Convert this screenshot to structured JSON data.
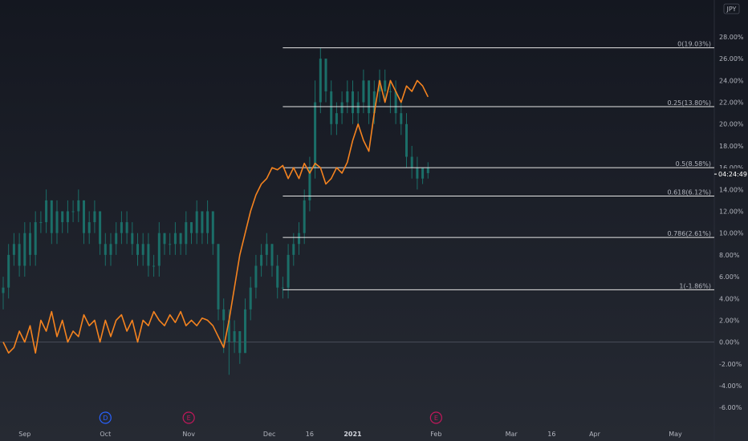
{
  "currency_badge": "JPY",
  "current_time": "04:24:49",
  "colors": {
    "candle": "#1b6e68",
    "line": "#f5831f",
    "fib": "#e6e6e6",
    "zero_line": "#4a4e5a",
    "badge_dividend": "#2962ff",
    "badge_earnings": "#c2185b"
  },
  "event_badges": [
    {
      "label": "D",
      "kind": "dividend",
      "date": "Oct"
    },
    {
      "label": "E",
      "kind": "earnings",
      "date": "Nov"
    },
    {
      "label": "E",
      "kind": "earnings",
      "date": "Feb"
    }
  ],
  "chart_data": {
    "type": "line",
    "y_unit": "%",
    "ylim": [
      -6.5,
      30.5
    ],
    "y_ticks": [
      "28.00%",
      "26.00%",
      "24.00%",
      "22.00%",
      "20.00%",
      "18.00%",
      "16.00%",
      "14.00%",
      "12.00%",
      "10.00%",
      "8.00%",
      "6.00%",
      "4.00%",
      "2.00%",
      "0.00%",
      "-2.00%",
      "-4.00%",
      "-6.00%"
    ],
    "x_ticks": [
      {
        "label": "Sep",
        "bold": false,
        "day": 8
      },
      {
        "label": "Oct",
        "bold": false,
        "day": 38
      },
      {
        "label": "Nov",
        "bold": false,
        "day": 69
      },
      {
        "label": "Dec",
        "bold": false,
        "day": 99
      },
      {
        "label": "16",
        "bold": false,
        "day": 114
      },
      {
        "label": "2021",
        "bold": true,
        "day": 130
      },
      {
        "label": "Feb",
        "bold": false,
        "day": 161
      },
      {
        "label": "Mar",
        "bold": false,
        "day": 189
      },
      {
        "label": "16",
        "bold": false,
        "day": 204
      },
      {
        "label": "Apr",
        "bold": false,
        "day": 220
      },
      {
        "label": "May",
        "bold": false,
        "day": 250
      }
    ],
    "fib_levels": [
      {
        "label": "0(19.03%)",
        "value": 27.0
      },
      {
        "label": "0.25(13.80%)",
        "value": 21.6
      },
      {
        "label": "0.5(8.58%)",
        "value": 16.0
      },
      {
        "label": "0.618(6.12%)",
        "value": 13.4
      },
      {
        "label": "0.786(2.61%)",
        "value": 9.6
      },
      {
        "label": "1(-1.86%)",
        "value": 4.8
      }
    ],
    "fib_start_day": 104,
    "current_value": 16.0,
    "orange_series": {
      "x": [
        0,
        2,
        4,
        6,
        8,
        10,
        12,
        14,
        16,
        18,
        20,
        22,
        24,
        26,
        28,
        30,
        32,
        34,
        36,
        38,
        40,
        42,
        44,
        46,
        48,
        50,
        52,
        54,
        56,
        58,
        60,
        62,
        64,
        66,
        68,
        70,
        72,
        74,
        76,
        78,
        80,
        82,
        84,
        86,
        88,
        90,
        92,
        94,
        96,
        98,
        100,
        102,
        104,
        106,
        108,
        110,
        112,
        114,
        116,
        118,
        120,
        122,
        124,
        126,
        128,
        130,
        132,
        134,
        136,
        138,
        140,
        142,
        144,
        146,
        148,
        150,
        152,
        154,
        156,
        158
      ],
      "y": [
        0,
        -1,
        -0.5,
        1,
        0,
        1.5,
        -1,
        2,
        1,
        2.8,
        0.5,
        2,
        0,
        1,
        0.5,
        2.5,
        1.5,
        2,
        0,
        2,
        0.5,
        2,
        2.5,
        1,
        2,
        0,
        2,
        1.5,
        2.8,
        2,
        1.5,
        2.5,
        1.8,
        2.8,
        1.5,
        2,
        1.5,
        2.2,
        2,
        1.5,
        0.5,
        -0.5,
        2,
        5,
        8,
        10,
        12,
        13.5,
        14.5,
        15,
        16,
        15.8,
        16.2,
        15,
        16,
        15,
        16.4,
        15.5,
        16.4,
        16,
        14.5,
        15,
        16,
        15.5,
        16.5,
        18.5,
        20,
        18.5,
        17.5,
        21,
        24,
        22,
        24,
        23,
        22,
        23.5,
        23,
        24,
        23.5,
        22.5
      ]
    },
    "candle_series": {
      "x": [
        0,
        2,
        4,
        6,
        8,
        10,
        12,
        14,
        16,
        18,
        20,
        22,
        24,
        26,
        28,
        30,
        32,
        34,
        36,
        38,
        40,
        42,
        44,
        46,
        48,
        50,
        52,
        54,
        56,
        58,
        60,
        62,
        64,
        66,
        68,
        70,
        72,
        74,
        76,
        78,
        80,
        82,
        84,
        86,
        88,
        90,
        92,
        94,
        96,
        98,
        100,
        102,
        104,
        106,
        108,
        110,
        112,
        114,
        116,
        118,
        120,
        122,
        124,
        126,
        128,
        130,
        132,
        134,
        136,
        138,
        140,
        142,
        144,
        146,
        148,
        150,
        152,
        154,
        156,
        158
      ],
      "open": [
        4.5,
        5,
        8,
        9,
        7,
        10,
        8,
        11,
        11,
        13,
        10,
        12,
        11,
        12,
        12,
        13,
        10,
        11,
        12,
        9,
        8,
        9,
        10,
        11,
        10,
        9,
        8,
        9,
        7,
        7,
        10,
        9,
        9,
        10,
        9,
        11,
        10,
        12,
        10,
        12,
        9,
        3,
        2,
        0,
        1,
        -1,
        3,
        5,
        7,
        8,
        9,
        7,
        5,
        5,
        8,
        9,
        10,
        13,
        16,
        22,
        26,
        23,
        20,
        21,
        22,
        23,
        21,
        22,
        24,
        21,
        23,
        24,
        23,
        23,
        21,
        20,
        17,
        16,
        15,
        16
      ],
      "close": [
        5,
        8,
        9,
        7,
        10,
        8,
        11,
        11,
        13,
        10,
        12,
        11,
        12,
        12,
        13,
        10,
        11,
        12,
        9,
        8,
        9,
        10,
        11,
        10,
        9,
        8,
        9,
        7,
        7,
        10,
        9,
        9,
        10,
        9,
        11,
        10,
        12,
        10,
        12,
        9,
        3,
        2,
        0,
        1,
        -1,
        3,
        5,
        7,
        8,
        9,
        7,
        5,
        5,
        8,
        9,
        10,
        13,
        16,
        22,
        26,
        23,
        20,
        21,
        22,
        23,
        21,
        22,
        24,
        21,
        23,
        24,
        23,
        23,
        21,
        20,
        17,
        16,
        15,
        16,
        15.5
      ],
      "high": [
        6,
        9,
        10,
        10,
        11,
        11,
        12,
        12,
        14,
        13,
        13,
        12,
        13,
        13,
        14,
        13,
        12,
        13,
        12,
        10,
        10,
        11,
        12,
        12,
        11,
        10,
        10,
        10,
        8,
        11,
        10,
        10,
        11,
        10,
        12,
        11,
        13,
        12,
        13,
        12,
        9,
        4,
        3,
        2,
        1,
        4,
        6,
        8,
        9,
        10,
        9,
        8,
        6,
        9,
        10,
        11,
        14,
        17,
        24,
        27,
        26,
        24,
        22,
        23,
        24,
        24,
        23,
        25,
        24,
        24,
        25,
        25,
        24,
        24,
        22,
        21,
        18,
        17,
        16,
        16.5
      ],
      "low": [
        3,
        4,
        7,
        6,
        6,
        7,
        7,
        10,
        10,
        9,
        9,
        10,
        10,
        11,
        11,
        9,
        9,
        10,
        8,
        7,
        7,
        8,
        9,
        9,
        8,
        7,
        7,
        6,
        6,
        6,
        8,
        8,
        8,
        8,
        8,
        9,
        9,
        9,
        9,
        8,
        2,
        -1,
        -3,
        -1,
        -2,
        -1,
        2,
        4,
        6,
        7,
        6,
        4,
        4,
        4,
        7,
        8,
        9,
        12,
        15,
        21,
        22,
        19,
        19,
        20,
        21,
        20,
        20,
        21,
        20,
        20,
        22,
        22,
        21,
        20,
        19,
        16,
        15,
        14,
        14.5,
        15
      ]
    }
  }
}
